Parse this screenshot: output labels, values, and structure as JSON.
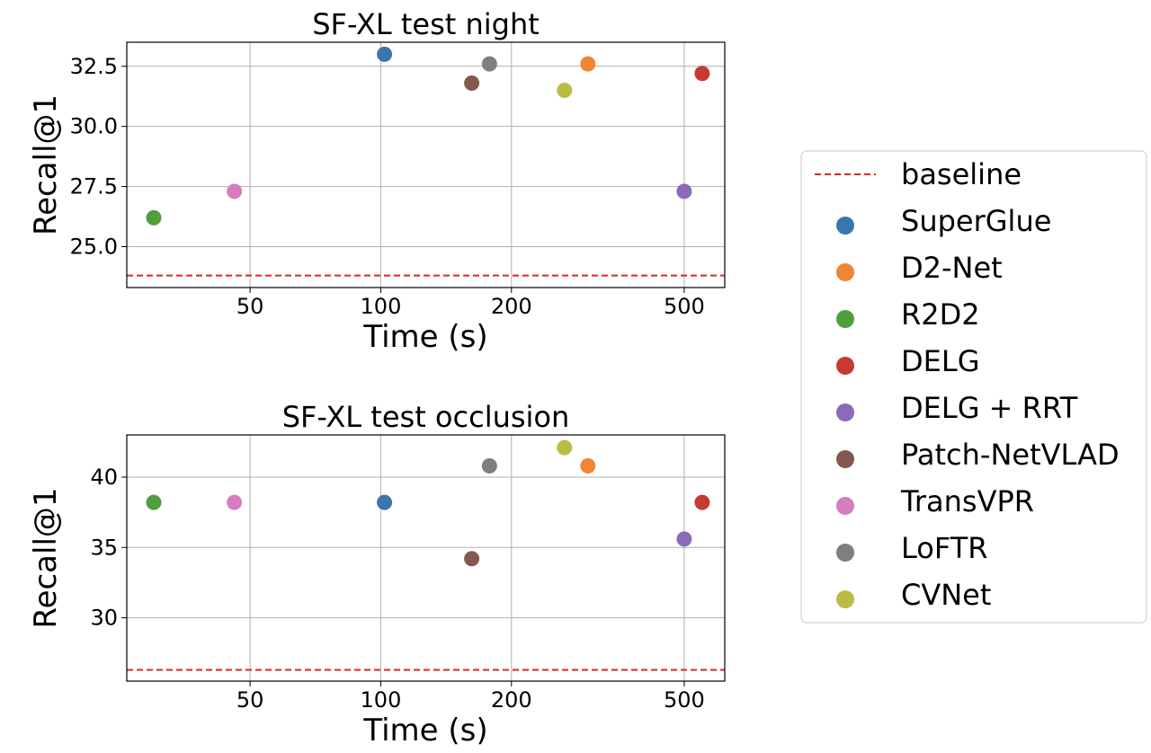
{
  "chart_data": [
    {
      "type": "scatter",
      "title": "SF-XL test night",
      "xlabel": "Time (s)",
      "ylabel": "Recall@1",
      "xscale": "log",
      "xlim": [
        26,
        620
      ],
      "ylim": [
        23.3,
        33.5
      ],
      "xticks": [
        50,
        100,
        200,
        500
      ],
      "xtick_labels": [
        "50",
        "100",
        "200",
        "500"
      ],
      "yticks": [
        25.0,
        27.5,
        30.0,
        32.5
      ],
      "ytick_labels": [
        "25.0",
        "27.5",
        "30.0",
        "32.5"
      ],
      "grid": true,
      "baseline": 23.8,
      "points": [
        {
          "series": "SuperGlue",
          "x": 102,
          "y": 33.0
        },
        {
          "series": "D2-Net",
          "x": 300,
          "y": 32.6
        },
        {
          "series": "R2D2",
          "x": 30,
          "y": 26.2
        },
        {
          "series": "DELG",
          "x": 550,
          "y": 32.2
        },
        {
          "series": "DELG + RRT",
          "x": 500,
          "y": 27.3
        },
        {
          "series": "Patch-NetVLAD",
          "x": 162,
          "y": 31.8
        },
        {
          "series": "TransVPR",
          "x": 46,
          "y": 27.3
        },
        {
          "series": "LoFTR",
          "x": 178,
          "y": 32.6
        },
        {
          "series": "CVNet",
          "x": 265,
          "y": 31.5
        }
      ]
    },
    {
      "type": "scatter",
      "title": "SF-XL test occlusion",
      "xlabel": "Time (s)",
      "ylabel": "Recall@1",
      "xscale": "log",
      "xlim": [
        26,
        620
      ],
      "ylim": [
        25.5,
        43
      ],
      "xticks": [
        50,
        100,
        200,
        500
      ],
      "xtick_labels": [
        "50",
        "100",
        "200",
        "500"
      ],
      "yticks": [
        30,
        35,
        40
      ],
      "ytick_labels": [
        "30",
        "35",
        "40"
      ],
      "grid": true,
      "baseline": 26.3,
      "points": [
        {
          "series": "SuperGlue",
          "x": 102,
          "y": 38.2
        },
        {
          "series": "D2-Net",
          "x": 300,
          "y": 40.8
        },
        {
          "series": "R2D2",
          "x": 30,
          "y": 38.2
        },
        {
          "series": "DELG",
          "x": 550,
          "y": 38.2
        },
        {
          "series": "DELG + RRT",
          "x": 500,
          "y": 35.6
        },
        {
          "series": "Patch-NetVLAD",
          "x": 162,
          "y": 34.2
        },
        {
          "series": "TransVPR",
          "x": 46,
          "y": 38.2
        },
        {
          "series": "LoFTR",
          "x": 178,
          "y": 40.8
        },
        {
          "series": "CVNet",
          "x": 265,
          "y": 42.1
        }
      ]
    }
  ],
  "legend": {
    "placement": "right",
    "baseline_label": "baseline",
    "baseline_color": "#d62728",
    "entries": [
      {
        "name": "SuperGlue",
        "color": "#3b75af"
      },
      {
        "name": "D2-Net",
        "color": "#ef8636"
      },
      {
        "name": "R2D2",
        "color": "#519e3e"
      },
      {
        "name": "DELG",
        "color": "#c53a32"
      },
      {
        "name": "DELG + RRT",
        "color": "#8d69b8"
      },
      {
        "name": "Patch-NetVLAD",
        "color": "#84584e"
      },
      {
        "name": "TransVPR",
        "color": "#d57dbf"
      },
      {
        "name": "LoFTR",
        "color": "#7f7f7f"
      },
      {
        "name": "CVNet",
        "color": "#bcbc45"
      }
    ]
  }
}
